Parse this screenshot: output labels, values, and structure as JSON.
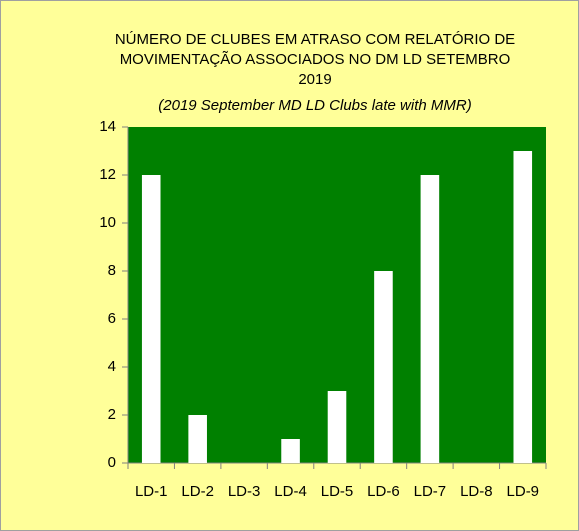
{
  "chart_data": {
    "type": "bar",
    "title": [
      "NÚMERO DE CLUBES EM ATRASO COM RELATÓRIO DE",
      "MOVIMENTAÇÃO  ASSOCIADOS NO DM LD SETEMBRO",
      "2019"
    ],
    "subtitle": "(2019 September MD LD Clubs late with MMR)",
    "categories": [
      "LD-1",
      "LD-2",
      "LD-3",
      "LD-4",
      "LD-5",
      "LD-6",
      "LD-7",
      "LD-8",
      "LD-9"
    ],
    "values": [
      12,
      2,
      0,
      1,
      3,
      8,
      12,
      0,
      13
    ],
    "color": "#ffffff",
    "plot_background": "#008000",
    "ylim": [
      0,
      14
    ],
    "yticks": [
      0,
      2,
      4,
      6,
      8,
      10,
      12,
      14
    ],
    "grid": false
  }
}
